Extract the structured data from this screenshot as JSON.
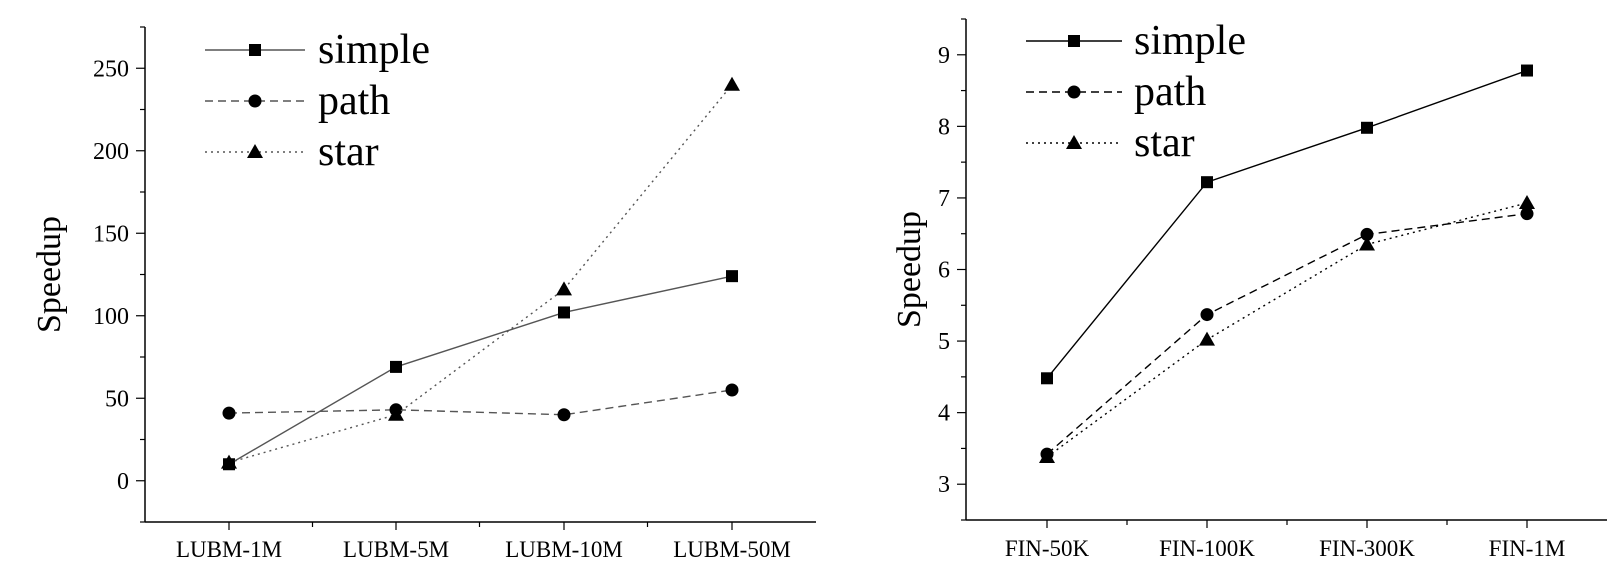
{
  "chart_data": [
    {
      "type": "line",
      "ylabel": "Speedup",
      "categories": [
        "LUBM-1M",
        "LUBM-5M",
        "LUBM-10M",
        "LUBM-50M"
      ],
      "ylim": [
        -25,
        275
      ],
      "yticks": [
        0,
        50,
        100,
        150,
        200,
        250
      ],
      "legend_position": "top-left",
      "grid": false,
      "series": [
        {
          "name": "simple",
          "marker": "square",
          "line": "solid",
          "color": "#555555",
          "values": [
            10,
            69,
            102,
            124
          ]
        },
        {
          "name": "path",
          "marker": "circle",
          "line": "dashed",
          "color": "#555555",
          "values": [
            41,
            43,
            40,
            55
          ]
        },
        {
          "name": "star",
          "marker": "triangle",
          "line": "dotted",
          "color": "#555555",
          "values": [
            11,
            40,
            116,
            240
          ]
        }
      ]
    },
    {
      "type": "line",
      "ylabel": "Speedup",
      "categories": [
        "FIN-50K",
        "FIN-100K",
        "FIN-300K",
        "FIN-1M"
      ],
      "ylim": [
        2.5,
        9.5
      ],
      "yticks": [
        3,
        4,
        5,
        6,
        7,
        8,
        9
      ],
      "legend_position": "top-left",
      "grid": false,
      "series": [
        {
          "name": "simple",
          "marker": "square",
          "line": "solid",
          "color": "#000000",
          "values": [
            4.48,
            7.22,
            7.98,
            8.78
          ]
        },
        {
          "name": "path",
          "marker": "circle",
          "line": "dashed",
          "color": "#000000",
          "values": [
            3.42,
            5.37,
            6.49,
            6.78
          ]
        },
        {
          "name": "star",
          "marker": "triangle",
          "line": "dotted",
          "color": "#000000",
          "values": [
            3.38,
            5.02,
            6.35,
            6.93
          ]
        }
      ]
    }
  ]
}
